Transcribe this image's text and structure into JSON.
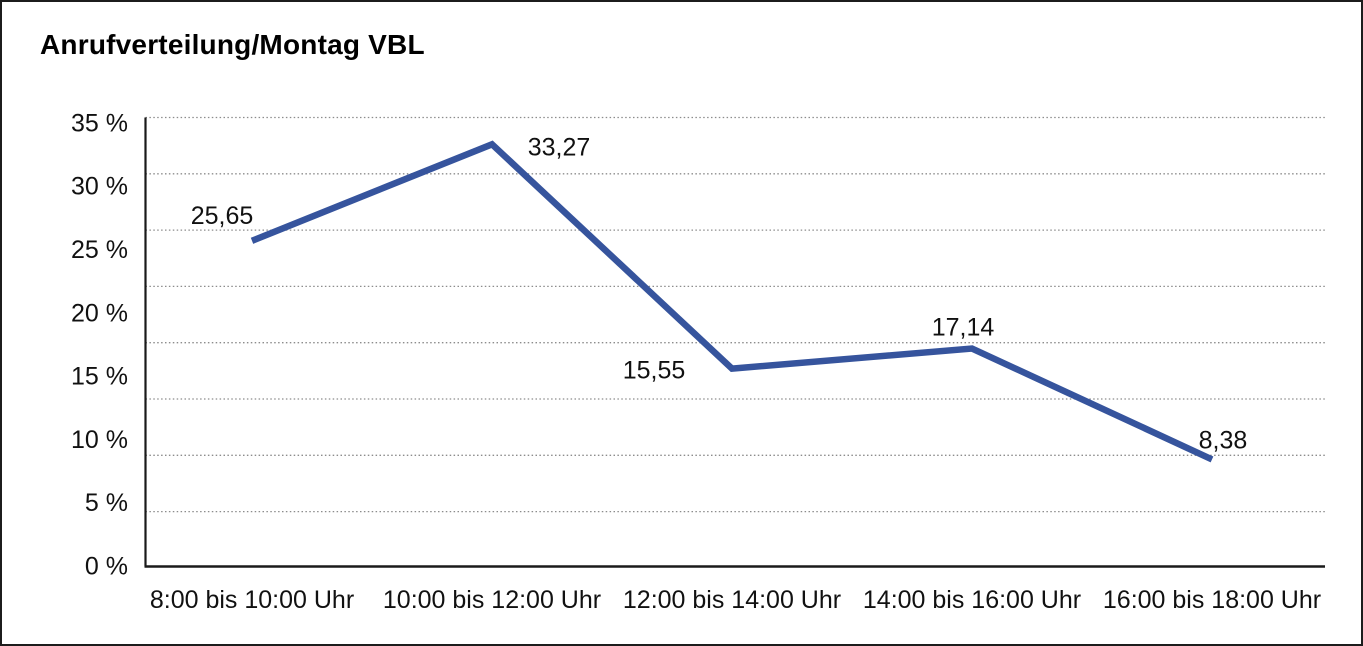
{
  "page": {
    "background": "#ffffff",
    "border_color": "#1c1c1c"
  },
  "chart": {
    "title": "Anrufverteilung/Montag VBL"
  },
  "chart_data": {
    "type": "line",
    "title": "Anrufverteilung/Montag VBL",
    "categories": [
      "8:00 bis 10:00 Uhr",
      "10:00 bis 12:00 Uhr",
      "12:00 bis 14:00 Uhr",
      "14:00 bis 16:00 Uhr",
      "16:00 bis 18:00 Uhr"
    ],
    "values": [
      25.65,
      33.27,
      15.55,
      17.14,
      8.38
    ],
    "point_labels": [
      "25,65",
      "33,27",
      "15,55",
      "17,14",
      "8,38"
    ],
    "y_tick_labels": [
      "35 %",
      "30 %",
      "25 %",
      "20 %",
      "15 %",
      "10 %",
      "5 %",
      "0 %"
    ],
    "ylim": [
      0,
      35
    ],
    "y_tick_step": 5,
    "unit": "%",
    "grid": "horizontal-dotted",
    "legend": "none",
    "colors": {
      "line": "#36549d",
      "axis": "#1a1a1a",
      "gridline": "#8c8c8c",
      "text": "#111111"
    }
  }
}
